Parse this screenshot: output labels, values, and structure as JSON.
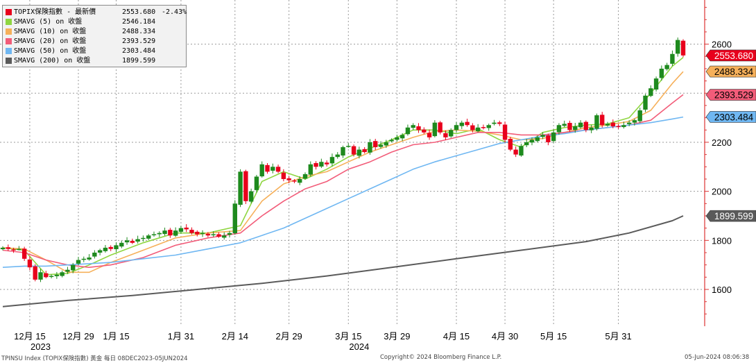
{
  "legend": {
    "main": {
      "name": "TOPIX保険指數 - 最新價",
      "value": "2553.680",
      "change": "-2.43%",
      "color": "#e8001c"
    },
    "smas": [
      {
        "name": "SMAVG (5)  on 收盤",
        "value": "2546.184",
        "color": "#8fd641"
      },
      {
        "name": "SMAVG (10)  on 收盤",
        "value": "2488.334",
        "color": "#f6b05a"
      },
      {
        "name": "SMAVG (20)  on 收盤",
        "value": "2393.529",
        "color": "#f25c79"
      },
      {
        "name": "SMAVG (50)  on 收盤",
        "value": "2303.484",
        "color": "#6fb7f2"
      },
      {
        "name": "SMAVG (200)  on 收盤",
        "value": "1899.599",
        "color": "#5a5a5a"
      }
    ]
  },
  "chart_data": {
    "type": "candlestick",
    "ylim": [
      1450,
      2780
    ],
    "yticks": [
      1600,
      1800,
      2000,
      2200,
      2400,
      2600
    ],
    "xlim": [
      0,
      126
    ],
    "x_ticks": [
      {
        "label": "12月 15",
        "index": 5
      },
      {
        "label": "12月 29",
        "index": 14
      },
      {
        "label": "1月 15",
        "index": 21
      },
      {
        "label": "1月 31",
        "index": 33
      },
      {
        "label": "2月 14",
        "index": 43
      },
      {
        "label": "2月 29",
        "index": 53
      },
      {
        "label": "3月 15",
        "index": 64
      },
      {
        "label": "3月 29",
        "index": 73
      },
      {
        "label": "4月 15",
        "index": 84
      },
      {
        "label": "4月 30",
        "index": 93
      },
      {
        "label": "5月 15",
        "index": 102
      },
      {
        "label": "5月 31",
        "index": 114
      }
    ],
    "year_labels": [
      {
        "label": "2023",
        "index": 7
      },
      {
        "label": "2024",
        "index": 66
      }
    ],
    "last_values": [
      {
        "label": "2553.680",
        "value": 2553.68,
        "bg": "#e8001c",
        "fg": "#ffffff"
      },
      {
        "label": "2488.334",
        "value": 2488.334,
        "bg": "#f6b05a",
        "fg": "#000000"
      },
      {
        "label": "2393.529",
        "value": 2393.529,
        "bg": "#f25c79",
        "fg": "#000000"
      },
      {
        "label": "2303.484",
        "value": 2303.484,
        "bg": "#6fb7f2",
        "fg": "#000000"
      },
      {
        "label": "1899.599",
        "value": 1899.599,
        "bg": "#5a5a5a",
        "fg": "#ffffff"
      }
    ],
    "closes": [
      1770,
      1765,
      1760,
      1765,
      1725,
      1690,
      1640,
      1670,
      1650,
      1655,
      1660,
      1670,
      1680,
      1700,
      1720,
      1725,
      1730,
      1750,
      1760,
      1770,
      1765,
      1780,
      1790,
      1800,
      1790,
      1805,
      1810,
      1820,
      1825,
      1830,
      1840,
      1820,
      1840,
      1850,
      1845,
      1830,
      1825,
      1830,
      1820,
      1825,
      1815,
      1820,
      1830,
      1950,
      2080,
      1960,
      2000,
      2060,
      2110,
      2080,
      2100,
      2080,
      2050,
      2045,
      2040,
      2050,
      2070,
      2110,
      2100,
      2120,
      2110,
      2140,
      2150,
      2180,
      2185,
      2150,
      2170,
      2160,
      2200,
      2180,
      2190,
      2200,
      2210,
      2220,
      2230,
      2260,
      2270,
      2250,
      2240,
      2220,
      2280,
      2240,
      2220,
      2250,
      2270,
      2280,
      2270,
      2250,
      2260,
      2260,
      2270,
      2280,
      2275,
      2210,
      2170,
      2150,
      2185,
      2200,
      2210,
      2220,
      2230,
      2200,
      2240,
      2270,
      2275,
      2250,
      2265,
      2280,
      2250,
      2260,
      2310,
      2270,
      2275,
      2265,
      2265,
      2270,
      2280,
      2290,
      2330,
      2390,
      2420,
      2460,
      2500,
      2515,
      2560,
      2617,
      2554
    ],
    "series": [
      {
        "name": "SMAVG (5)  on 收盤",
        "color": "#8fd641"
      },
      {
        "name": "SMAVG (10)  on 收盤",
        "color": "#f6b05a"
      },
      {
        "name": "SMAVG (20)  on 收盤",
        "color": "#f25c79"
      },
      {
        "name": "SMAVG (50)  on 收盤",
        "color": "#6fb7f2"
      },
      {
        "name": "SMAVG (200)  on 收盤",
        "color": "#5a5a5a"
      }
    ],
    "ma_points": {
      "sma5": [
        [
          0,
          1770
        ],
        [
          4,
          1760
        ],
        [
          8,
          1660
        ],
        [
          12,
          1665
        ],
        [
          16,
          1700
        ],
        [
          20,
          1740
        ],
        [
          26,
          1790
        ],
        [
          32,
          1830
        ],
        [
          38,
          1830
        ],
        [
          44,
          1860
        ],
        [
          48,
          2040
        ],
        [
          52,
          2080
        ],
        [
          56,
          2050
        ],
        [
          60,
          2090
        ],
        [
          64,
          2140
        ],
        [
          68,
          2175
        ],
        [
          72,
          2210
        ],
        [
          76,
          2250
        ],
        [
          80,
          2250
        ],
        [
          84,
          2235
        ],
        [
          88,
          2255
        ],
        [
          92,
          2210
        ],
        [
          96,
          2180
        ],
        [
          100,
          2240
        ],
        [
          104,
          2260
        ],
        [
          108,
          2270
        ],
        [
          112,
          2275
        ],
        [
          116,
          2300
        ],
        [
          120,
          2400
        ],
        [
          124,
          2510
        ],
        [
          126,
          2546
        ]
      ],
      "sma10": [
        [
          0,
          1770
        ],
        [
          4,
          1765
        ],
        [
          8,
          1720
        ],
        [
          12,
          1670
        ],
        [
          16,
          1670
        ],
        [
          20,
          1710
        ],
        [
          26,
          1760
        ],
        [
          32,
          1810
        ],
        [
          38,
          1830
        ],
        [
          44,
          1840
        ],
        [
          48,
          1960
        ],
        [
          52,
          2030
        ],
        [
          56,
          2060
        ],
        [
          60,
          2080
        ],
        [
          64,
          2120
        ],
        [
          68,
          2160
        ],
        [
          72,
          2190
        ],
        [
          76,
          2220
        ],
        [
          80,
          2245
        ],
        [
          84,
          2250
        ],
        [
          88,
          2245
        ],
        [
          92,
          2230
        ],
        [
          96,
          2210
        ],
        [
          100,
          2215
        ],
        [
          104,
          2240
        ],
        [
          108,
          2260
        ],
        [
          112,
          2270
        ],
        [
          116,
          2285
        ],
        [
          120,
          2330
        ],
        [
          124,
          2440
        ],
        [
          126,
          2488
        ]
      ],
      "sma20": [
        [
          0,
          1760
        ],
        [
          4,
          1750
        ],
        [
          8,
          1720
        ],
        [
          12,
          1700
        ],
        [
          16,
          1690
        ],
        [
          20,
          1700
        ],
        [
          26,
          1730
        ],
        [
          32,
          1780
        ],
        [
          38,
          1810
        ],
        [
          44,
          1830
        ],
        [
          48,
          1900
        ],
        [
          52,
          1960
        ],
        [
          56,
          2010
        ],
        [
          60,
          2040
        ],
        [
          64,
          2090
        ],
        [
          68,
          2120
        ],
        [
          72,
          2160
        ],
        [
          76,
          2190
        ],
        [
          80,
          2200
        ],
        [
          84,
          2220
        ],
        [
          88,
          2240
        ],
        [
          92,
          2240
        ],
        [
          96,
          2230
        ],
        [
          100,
          2230
        ],
        [
          104,
          2240
        ],
        [
          108,
          2250
        ],
        [
          112,
          2260
        ],
        [
          116,
          2270
        ],
        [
          120,
          2290
        ],
        [
          124,
          2360
        ],
        [
          126,
          2394
        ]
      ],
      "sma50": [
        [
          0,
          1690
        ],
        [
          4,
          1695
        ],
        [
          8,
          1695
        ],
        [
          12,
          1700
        ],
        [
          16,
          1705
        ],
        [
          20,
          1710
        ],
        [
          26,
          1725
        ],
        [
          32,
          1740
        ],
        [
          38,
          1765
        ],
        [
          44,
          1790
        ],
        [
          48,
          1820
        ],
        [
          52,
          1850
        ],
        [
          56,
          1890
        ],
        [
          60,
          1930
        ],
        [
          64,
          1970
        ],
        [
          68,
          2010
        ],
        [
          72,
          2050
        ],
        [
          76,
          2090
        ],
        [
          80,
          2120
        ],
        [
          84,
          2145
        ],
        [
          88,
          2170
        ],
        [
          92,
          2195
        ],
        [
          96,
          2210
        ],
        [
          100,
          2225
        ],
        [
          104,
          2235
        ],
        [
          108,
          2250
        ],
        [
          112,
          2260
        ],
        [
          116,
          2270
        ],
        [
          120,
          2280
        ],
        [
          124,
          2295
        ],
        [
          126,
          2303
        ]
      ],
      "sma200": [
        [
          0,
          1530
        ],
        [
          12,
          1555
        ],
        [
          24,
          1575
        ],
        [
          36,
          1600
        ],
        [
          48,
          1625
        ],
        [
          60,
          1655
        ],
        [
          72,
          1690
        ],
        [
          84,
          1725
        ],
        [
          96,
          1760
        ],
        [
          108,
          1795
        ],
        [
          116,
          1830
        ],
        [
          124,
          1880
        ],
        [
          126,
          1900
        ]
      ]
    }
  },
  "footer": {
    "left": "TPINSU Index (TOPIX保険指數) 黃金  每日 08DEC2023-05JUN2024",
    "center": "Copyright© 2024 Bloomberg Finance L.P.",
    "right": "05-Jun-2024 08:06:38"
  }
}
